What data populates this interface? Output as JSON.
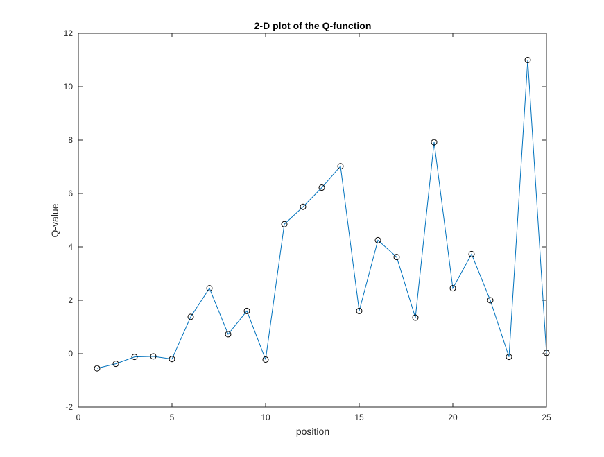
{
  "chart_data": {
    "type": "line",
    "title": "2-D plot of the Q-function",
    "xlabel": "position",
    "ylabel": "Q-value",
    "xlim": [
      0,
      25
    ],
    "ylim": [
      -2,
      12
    ],
    "xticks": [
      0,
      5,
      10,
      15,
      20,
      25
    ],
    "yticks": [
      -2,
      0,
      2,
      4,
      6,
      8,
      10,
      12
    ],
    "xtick_labels": [
      "0",
      "5",
      "10",
      "15",
      "20",
      "25"
    ],
    "ytick_labels": [
      "-2",
      "0",
      "2",
      "4",
      "6",
      "8",
      "10",
      "12"
    ],
    "grid": false,
    "line_color": "#0072BD",
    "marker": "open-circle",
    "marker_color": "#000000",
    "x": [
      1,
      2,
      3,
      4,
      5,
      6,
      7,
      8,
      9,
      10,
      11,
      12,
      13,
      14,
      15,
      16,
      17,
      18,
      19,
      20,
      21,
      22,
      23,
      24,
      25
    ],
    "y": [
      -0.55,
      -0.38,
      -0.12,
      -0.1,
      -0.2,
      1.38,
      2.45,
      0.73,
      1.6,
      -0.22,
      4.85,
      5.5,
      6.22,
      7.02,
      1.6,
      4.25,
      3.62,
      1.35,
      7.92,
      2.45,
      3.73,
      2.0,
      -0.12,
      11.0,
      0.03
    ]
  }
}
